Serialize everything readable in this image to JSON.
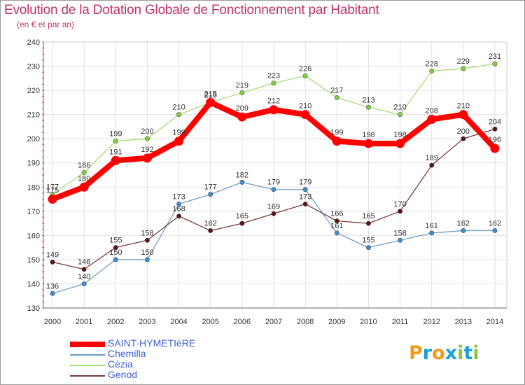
{
  "chart_data": {
    "type": "line",
    "title": "Evolution de la Dotation Globale de Fonctionnement par Habitant",
    "subtitle": "(en € et par an)",
    "categories": [
      "2000",
      "2001",
      "2002",
      "2003",
      "2004",
      "2005",
      "2006",
      "2007",
      "2008",
      "2009",
      "2010",
      "2011",
      "2012",
      "2013",
      "2014"
    ],
    "ylim": [
      130,
      240
    ],
    "yticks": [
      130,
      140,
      150,
      160,
      170,
      180,
      190,
      200,
      210,
      220,
      230,
      240
    ],
    "grid": true,
    "legend_position": "bottom-left",
    "series": [
      {
        "name": "SAINT-HYMETIèRE",
        "color": "#ff0000",
        "marker_color": "#ff0000",
        "values": [
          175,
          180,
          191,
          192,
          199,
          215,
          209,
          212,
          210,
          199,
          198,
          198,
          208,
          210,
          196
        ]
      },
      {
        "name": "Chemilla",
        "color": "#6e9ec8",
        "marker_color": "#3b8ed2",
        "values": [
          136,
          140,
          150,
          150,
          173,
          177,
          182,
          179,
          179,
          161,
          155,
          158,
          161,
          162,
          162
        ]
      },
      {
        "name": "Cézia",
        "color": "#a6dd7a",
        "marker_color": "#7ed23b",
        "values": [
          177,
          186,
          199,
          200,
          210,
          215,
          219,
          223,
          226,
          217,
          213,
          210,
          228,
          229,
          231
        ]
      },
      {
        "name": "Genod",
        "color": "#7a3a3a",
        "marker_color": "#5a1414",
        "values": [
          149,
          146,
          155,
          158,
          168,
          162,
          165,
          169,
          173,
          166,
          165,
          170,
          189,
          200,
          204
        ]
      }
    ]
  },
  "logo": {
    "text": "Proxiti",
    "letters": [
      "P",
      "r",
      "o",
      "x",
      "i",
      "t",
      "i"
    ],
    "colors": [
      "#f09a1c",
      "#1a9fd8",
      "#f09a1c",
      "#1a9fd8",
      "#8cc63f",
      "#1a9fd8",
      "#8cc63f"
    ]
  }
}
